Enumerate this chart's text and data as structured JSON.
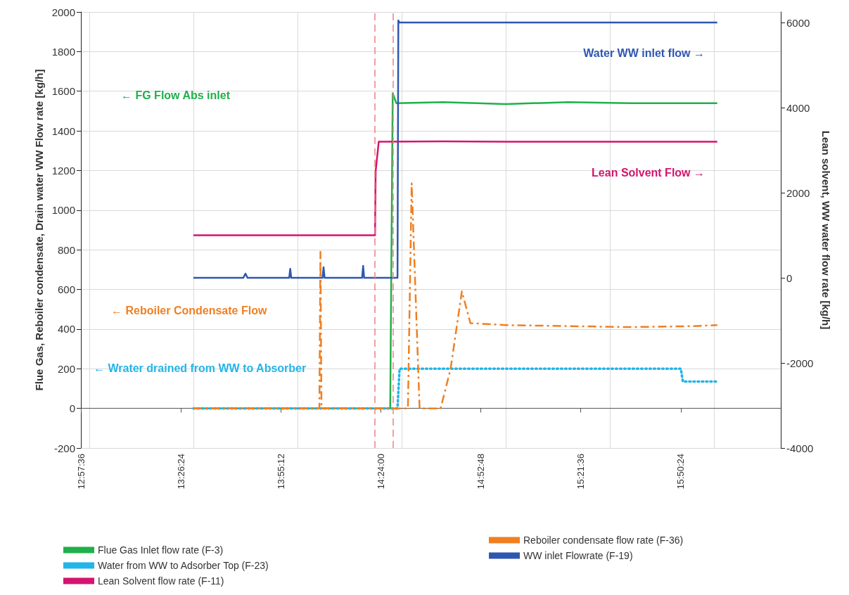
{
  "chart_data": {
    "type": "line",
    "ylabel": "Flue Gas, Reboiler condensate, Drain water WW Flow rate [kg/h]",
    "y2label": "Lean solvent, WW water flow rate [kg/h]",
    "xlim": [
      12.96,
      16.32
    ],
    "xticks": [
      {
        "value": 12.96,
        "label": "12:57:36"
      },
      {
        "value": 13.44,
        "label": "13:26:24"
      },
      {
        "value": 13.92,
        "label": "13:55:12"
      },
      {
        "value": 14.4,
        "label": "14:24:00"
      },
      {
        "value": 14.88,
        "label": "14:52:48"
      },
      {
        "value": 15.36,
        "label": "15:21:36"
      },
      {
        "value": 15.84,
        "label": "15:50:24"
      }
    ],
    "ylim": [
      -200,
      2000
    ],
    "yticks": [
      -200,
      0,
      200,
      400,
      600,
      800,
      1000,
      1200,
      1400,
      1600,
      1800,
      2000
    ],
    "y2lim": [
      -4000,
      6250
    ],
    "y2ticks": [
      -4000,
      -2000,
      0,
      2000,
      4000,
      6000
    ],
    "grid": true,
    "legend": "bottom",
    "marker": "none",
    "series": [
      {
        "name": "Flue Gas Inlet flow rate (F-3)",
        "color": "#1fb04b",
        "line_style": "solid",
        "x": [
          13.5,
          14.445,
          14.457,
          14.474,
          14.7,
          15.0,
          15.3,
          15.6,
          15.9,
          16.015
        ],
        "values": [
          0,
          0,
          1590,
          1540,
          1545,
          1535,
          1545,
          1540,
          1540,
          1540
        ]
      },
      {
        "name": "Reboiler condensate flow rate (F-36)",
        "color": "#f07f22",
        "line_style": "dashed",
        "x": [
          13.5,
          14.105,
          14.11,
          14.115,
          14.53,
          14.548,
          14.586,
          14.687,
          14.735,
          14.789,
          14.83,
          15.0,
          15.3,
          15.6,
          15.9,
          16.015
        ],
        "values": [
          0,
          0,
          790,
          0,
          0,
          1135,
          0,
          0,
          200,
          590,
          430,
          420,
          415,
          410,
          415,
          420
        ]
      },
      {
        "name": "Water from WW to Adsorber Top (F-23)",
        "color": "#23b5e8",
        "line_style": "dotted",
        "x": [
          13.5,
          14.48,
          14.49,
          15.84,
          15.85,
          16.015
        ],
        "values": [
          0,
          0,
          200,
          200,
          135,
          135
        ]
      },
      {
        "name": "WW inlet Flowrate (F-19)",
        "color": "#2f57b0",
        "line_style": "solid",
        "axis": "y2",
        "x": [
          13.5,
          13.74,
          13.75,
          13.76,
          13.96,
          13.965,
          13.97,
          14.12,
          14.125,
          14.13,
          14.31,
          14.315,
          14.32,
          14.48,
          14.484,
          14.49,
          14.7,
          15.0,
          15.3,
          15.6,
          15.9,
          16.015
        ],
        "values": [
          0,
          0,
          100,
          0,
          0,
          210,
          0,
          0,
          250,
          0,
          0,
          280,
          0,
          0,
          6050,
          6000,
          6000,
          6000,
          6000,
          6000,
          6000,
          6000
        ]
      },
      {
        "name": "Lean Solvent flow rate (F-11)",
        "color": "#d4146e",
        "line_style": "solid",
        "axis": "y2",
        "x": [
          13.5,
          14.372,
          14.375,
          14.39,
          14.7,
          15.0,
          15.3,
          15.6,
          15.9,
          16.015
        ],
        "values": [
          1000,
          1000,
          2500,
          3200,
          3210,
          3200,
          3200,
          3200,
          3200,
          3200
        ]
      }
    ],
    "annotations": [
      "← FG Flow Abs inlet",
      "← Reboiler Condensate Flow",
      "← Wrater drained from WW to Absorber",
      "Water WW inlet flow →",
      "Lean Solvent Flow →"
    ],
    "ref_lines": [
      {
        "axis": "x",
        "value": 14.372,
        "color": "#f08080",
        "line_style": "dashed"
      },
      {
        "axis": "x",
        "value": 14.461,
        "color": "#f08080",
        "line_style": "dashed"
      }
    ]
  }
}
